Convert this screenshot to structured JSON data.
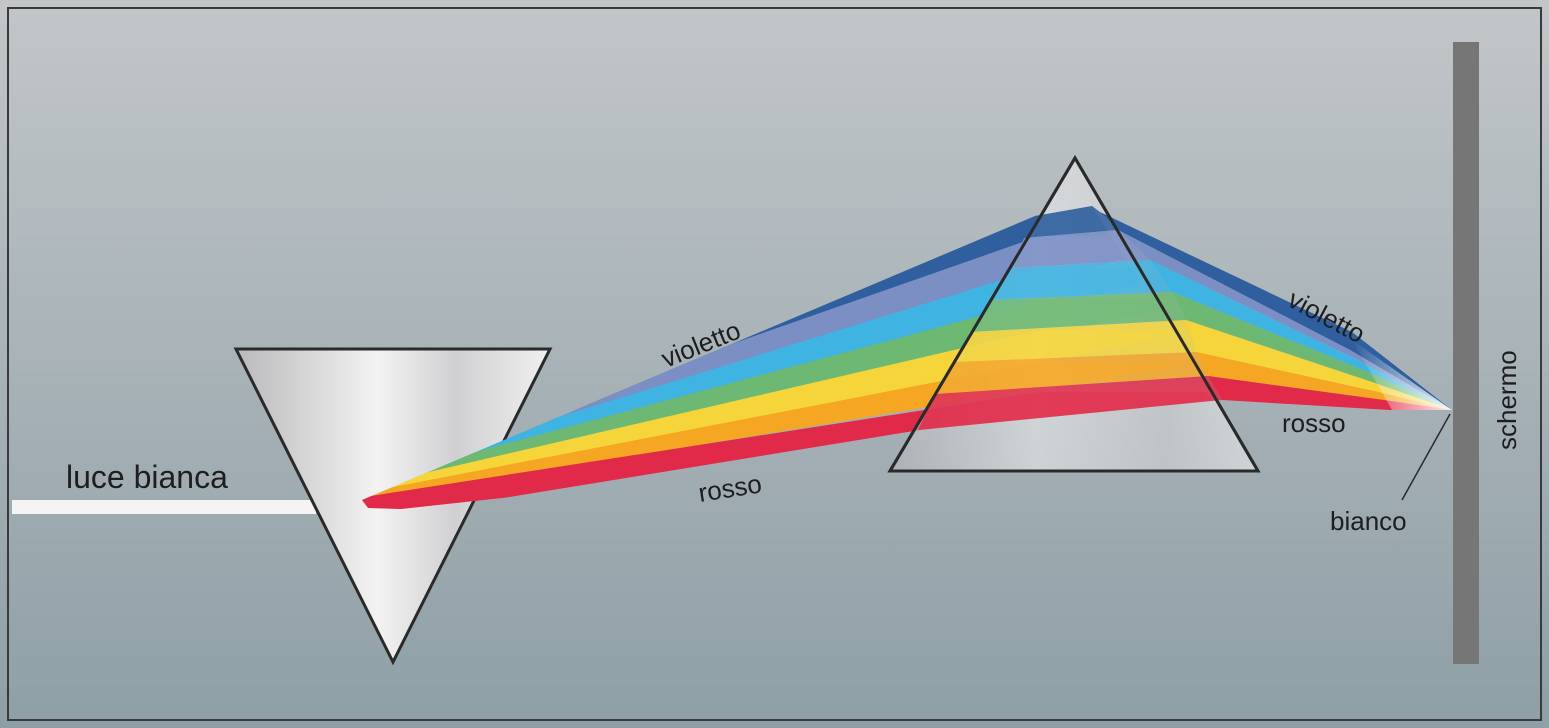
{
  "labels": {
    "white_light": "luce bianca",
    "violet_1": "violetto",
    "red_1": "rosso",
    "violet_2": "violetto",
    "red_2": "rosso",
    "white": "bianco",
    "screen": "schermo"
  },
  "spectrum": [
    {
      "name": "violet",
      "color": "#2f5f9e"
    },
    {
      "name": "indigo",
      "color": "#7b8fc4"
    },
    {
      "name": "blue",
      "color": "#3fb3e2"
    },
    {
      "name": "green",
      "color": "#6db872"
    },
    {
      "name": "yellow",
      "color": "#f5d53a"
    },
    {
      "name": "orange",
      "color": "#f5a623"
    },
    {
      "name": "red",
      "color": "#e12a49"
    }
  ],
  "colors": {
    "background_top": "#c2c6c9",
    "background_bottom": "#8e9fa6",
    "prism_fill": "#dedede",
    "prism_edge": "#2a2a2a",
    "screen": "#767676",
    "white_beam": "#f4f4f4",
    "frame": "#3a3a3a"
  }
}
